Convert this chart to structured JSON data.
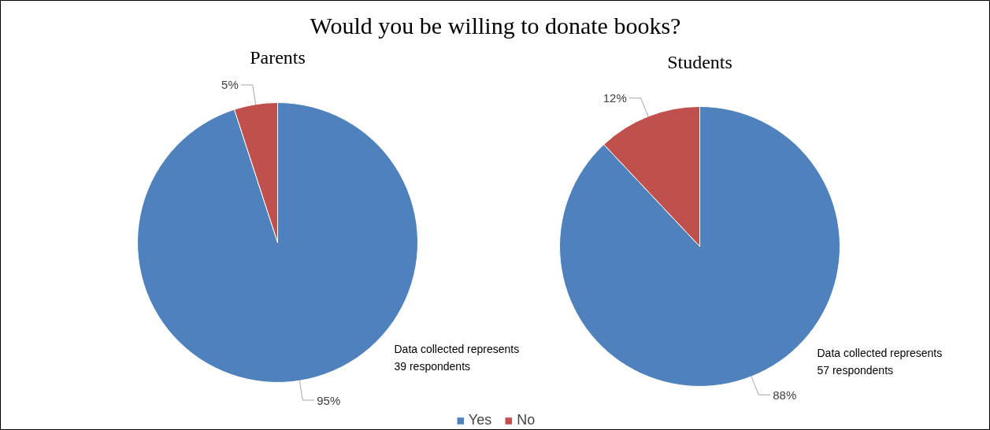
{
  "chart_data": [
    {
      "type": "pie",
      "title": "Would you be willing to donate books?",
      "subtitle": "Parents",
      "categories": [
        "Yes",
        "No"
      ],
      "values": [
        95,
        5
      ],
      "colors": [
        "#4f81bd",
        "#c0504d"
      ],
      "value_labels": [
        "95%",
        "5%"
      ],
      "legend": "bottom",
      "annotations": [
        "Data collected represents\n39 respondents"
      ]
    },
    {
      "type": "pie",
      "subtitle": "Students",
      "categories": [
        null,
        null
      ],
      "values": [
        88,
        12
      ],
      "colors": [
        "#4f81bd",
        "#c0504d"
      ],
      "value_labels": [
        "88%",
        "12%"
      ],
      "annotations": [
        "Data collected represents\n57 respondents"
      ]
    }
  ]
}
